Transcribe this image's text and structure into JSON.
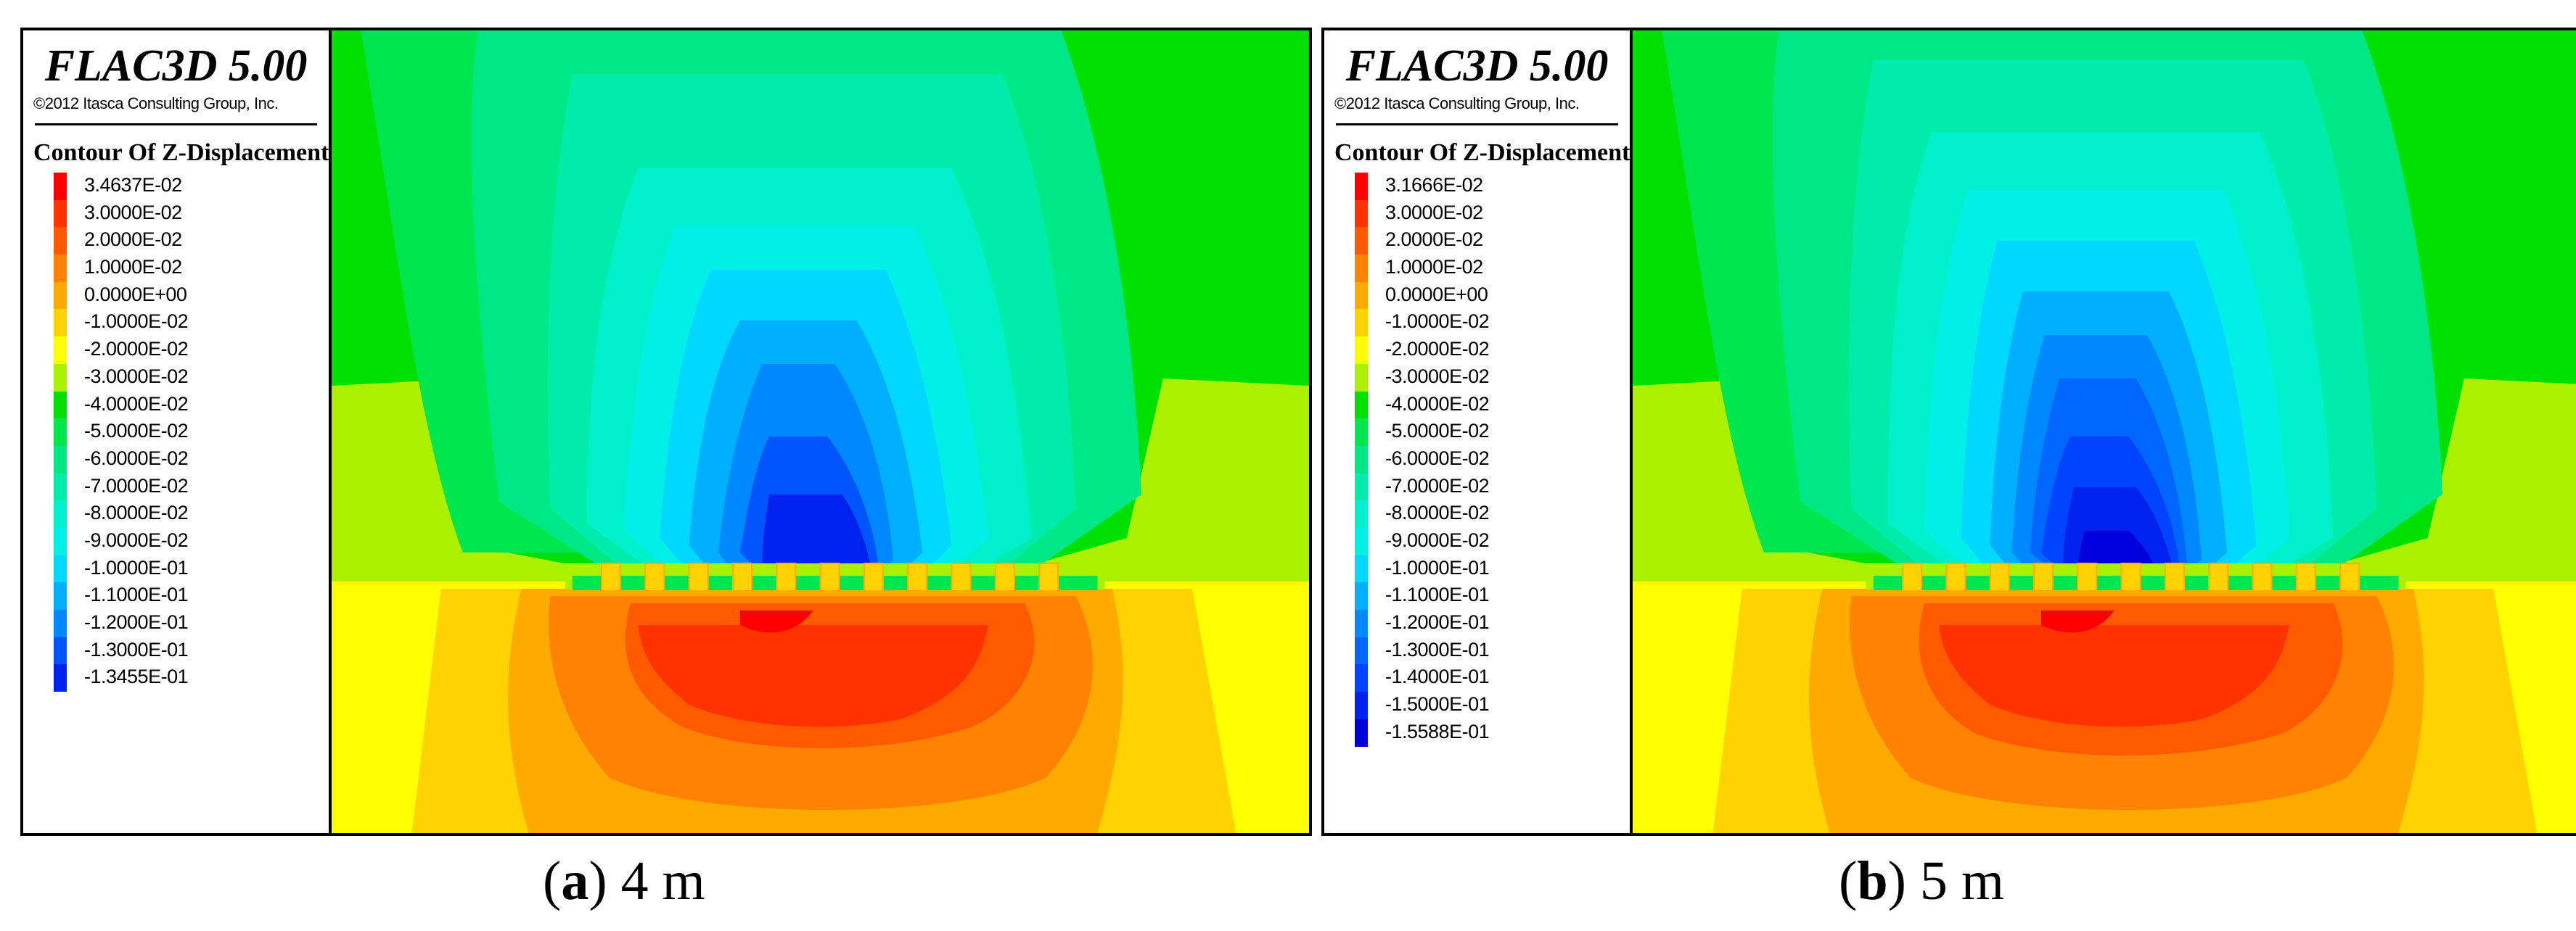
{
  "panels": [
    {
      "brand": "FLAC3D 5.00",
      "copyright": "©2012 Itasca Consulting Group, Inc.",
      "legend_title": "Contour Of Z-Displacement",
      "legend_entries": [
        "3.4637E-02",
        "3.0000E-02",
        "2.0000E-02",
        "1.0000E-02",
        "0.0000E+00",
        "-1.0000E-02",
        "-2.0000E-02",
        "-3.0000E-02",
        "-4.0000E-02",
        "-5.0000E-02",
        "-6.0000E-02",
        "-7.0000E-02",
        "-8.0000E-02",
        "-9.0000E-02",
        "-1.0000E-01",
        "-1.1000E-01",
        "-1.2000E-01",
        "-1.3000E-01",
        "-1.3455E-01"
      ],
      "legend_colors": [
        "#ff0000",
        "#ff3300",
        "#ff5a00",
        "#ff8200",
        "#ffaa00",
        "#ffd200",
        "#ffff00",
        "#aaf000",
        "#00e000",
        "#00e64e",
        "#00e886",
        "#00ecaa",
        "#00f0cc",
        "#00f0e8",
        "#00d8ff",
        "#00b0ff",
        "#0088ff",
        "#0055ff",
        "#0022ee"
      ],
      "caption_letter": "a",
      "caption_text": "4 m"
    },
    {
      "brand": "FLAC3D 5.00",
      "copyright": "©2012 Itasca Consulting Group, Inc.",
      "legend_title": "Contour Of Z-Displacement",
      "legend_entries": [
        "3.1666E-02",
        "3.0000E-02",
        "2.0000E-02",
        "1.0000E-02",
        "0.0000E+00",
        "-1.0000E-02",
        "-2.0000E-02",
        "-3.0000E-02",
        "-4.0000E-02",
        "-5.0000E-02",
        "-6.0000E-02",
        "-7.0000E-02",
        "-8.0000E-02",
        "-9.0000E-02",
        "-1.0000E-01",
        "-1.1000E-01",
        "-1.2000E-01",
        "-1.3000E-01",
        "-1.4000E-01",
        "-1.5000E-01",
        "-1.5588E-01"
      ],
      "legend_colors": [
        "#ff0000",
        "#ff3300",
        "#ff5a00",
        "#ff8200",
        "#ffaa00",
        "#ffd200",
        "#ffff00",
        "#aaf000",
        "#00e000",
        "#00e64e",
        "#00e886",
        "#00ecaa",
        "#00f0cc",
        "#00f0e8",
        "#00d8ff",
        "#00b0ff",
        "#0088ff",
        "#0066ff",
        "#0044ff",
        "#0022ee",
        "#0000dd"
      ],
      "caption_letter": "b",
      "caption_text": "5 m"
    }
  ],
  "caption_open": "(",
  "caption_close": ")"
}
